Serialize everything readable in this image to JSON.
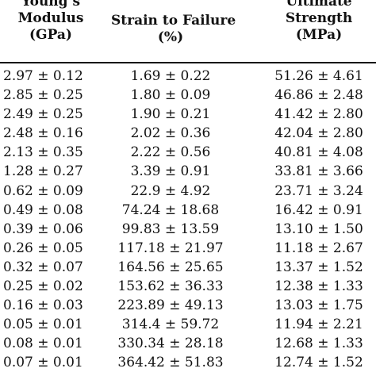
{
  "table": {
    "headers": [
      [
        "Young’s",
        "Modulus",
        "(GPa)"
      ],
      [
        "Strain to Failure",
        "(%)"
      ],
      [
        "Ultimate",
        "Strength",
        "(MPa)"
      ]
    ],
    "rows": [
      [
        "2.97 ± 0.12",
        "1.69 ± 0.22",
        "51.26 ± 4.61"
      ],
      [
        "2.85 ± 0.25",
        "1.80 ± 0.09",
        "46.86 ± 2.48"
      ],
      [
        "2.49 ± 0.25",
        "1.90 ± 0.21",
        "41.42 ± 2.80"
      ],
      [
        "2.48 ± 0.16",
        "2.02 ± 0.36",
        "42.04 ± 2.80"
      ],
      [
        "2.13 ± 0.35",
        "2.22 ± 0.56",
        "40.81 ± 4.08"
      ],
      [
        "1.28 ± 0.27",
        "3.39 ± 0.91",
        "33.81 ± 3.66"
      ],
      [
        "0.62 ± 0.09",
        "22.9 ± 4.92",
        "23.71 ± 3.24"
      ],
      [
        "0.49 ± 0.08",
        "74.24 ± 18.68",
        "16.42 ± 0.91"
      ],
      [
        "0.39 ± 0.06",
        "99.83 ± 13.59",
        "13.10 ± 1.50"
      ],
      [
        "0.26 ± 0.05",
        "117.18 ± 21.97",
        "11.18 ± 2.67"
      ],
      [
        "0.32 ± 0.07",
        "164.56 ± 25.65",
        "13.37 ± 1.52"
      ],
      [
        "0.25 ± 0.02",
        "153.62 ± 36.33",
        "12.38 ± 1.33"
      ],
      [
        "0.16 ± 0.03",
        "223.89 ± 49.13",
        "13.03 ± 1.75"
      ],
      [
        "0.05 ± 0.01",
        "314.4 ± 59.72",
        "11.94 ± 2.21"
      ],
      [
        "0.08 ± 0.01",
        "330.34 ± 28.18",
        "12.68 ± 1.33"
      ],
      [
        "0.07 ± 0.01",
        "364.42 ± 51.83",
        "12.74 ± 1.52"
      ]
    ]
  }
}
